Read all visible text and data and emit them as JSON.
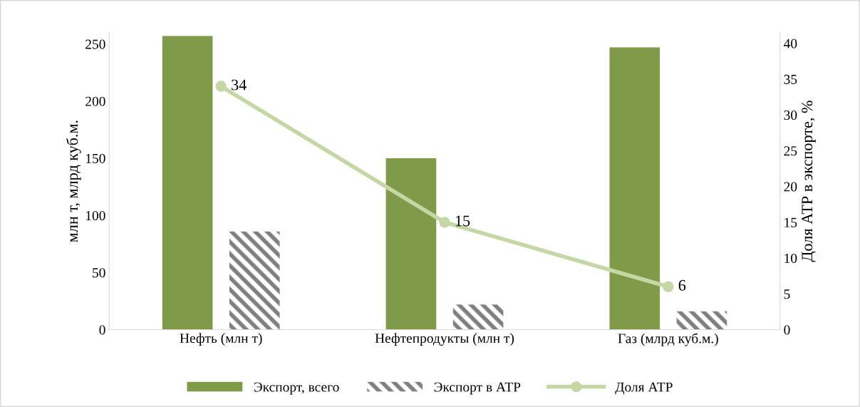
{
  "chart_data": {
    "type": "bar",
    "categories": [
      "Нефть (млн т)",
      "Нефтепродукты (млн т)",
      "Газ (млрд куб.м.)"
    ],
    "ylabel": "млн т, млрд куб.м.",
    "y2label": "Доля АТР в экспорте, %",
    "ylim": [
      0,
      260
    ],
    "yticks": [
      0,
      50,
      100,
      150,
      200,
      250
    ],
    "y2lim": [
      0,
      41.5
    ],
    "y2ticks": [
      0,
      5,
      10,
      15,
      20,
      25,
      30,
      35,
      40
    ],
    "series": [
      {
        "name": "Экспорт, всего",
        "color": "#7f9a48",
        "values": [
          257,
          150,
          247
        ]
      },
      {
        "name": "Экспорт в АТР",
        "color": "#7f7f7f",
        "values": [
          86,
          22,
          16
        ]
      },
      {
        "name": "Доля АТР",
        "type": "line",
        "axis": "y2",
        "color": "#c4d7a5",
        "marker": "circle",
        "data_labels": true,
        "values": [
          34,
          15,
          6
        ]
      }
    ],
    "grid": false,
    "legend": "bottom"
  }
}
